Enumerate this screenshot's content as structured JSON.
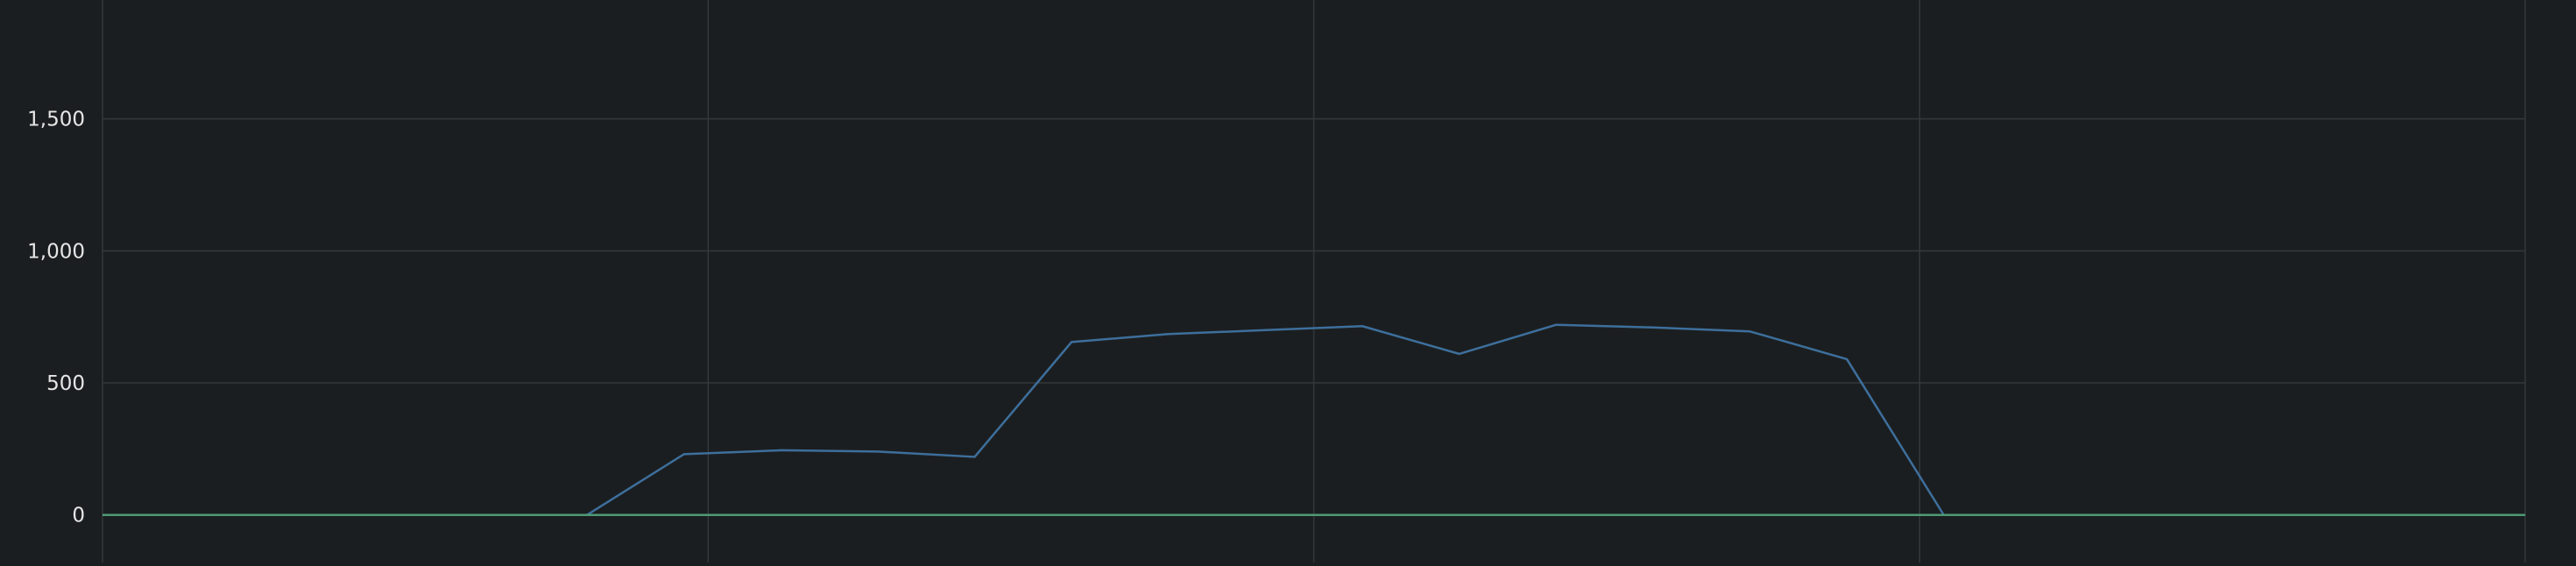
{
  "chart_data": {
    "type": "line",
    "title": "",
    "xlabel": "",
    "ylabel": "",
    "y_ticks": [
      "0",
      "500",
      "1,000",
      "1,500"
    ],
    "y_tick_values": [
      0,
      500,
      1000,
      1500
    ],
    "ylim": [
      -180,
      1950
    ],
    "grid": true,
    "legend": "none",
    "x_gridline_count": 5,
    "x": [
      0,
      1,
      2,
      3,
      4,
      5,
      6,
      7,
      8,
      9,
      10,
      11,
      12,
      13,
      14,
      15,
      16,
      17,
      18,
      19,
      20,
      21,
      22,
      23,
      24,
      25
    ],
    "series": [
      {
        "color": "#3d6f9c",
        "values": [
          0,
          0,
          0,
          0,
          0,
          0,
          230,
          245,
          240,
          220,
          655,
          685,
          700,
          715,
          610,
          720,
          710,
          695,
          590,
          0,
          0,
          0,
          0,
          0,
          0,
          0
        ]
      },
      {
        "color": "#4e9a74",
        "values": [
          0,
          0,
          0,
          0,
          0,
          0,
          0,
          0,
          0,
          0,
          0,
          0,
          0,
          0,
          0,
          0,
          0,
          0,
          0,
          0,
          0,
          0,
          0,
          0,
          0,
          0
        ]
      }
    ],
    "colors": {
      "background": "#1b1e20",
      "grid": "#33383b",
      "tick_text": "#e6e6e6"
    }
  }
}
